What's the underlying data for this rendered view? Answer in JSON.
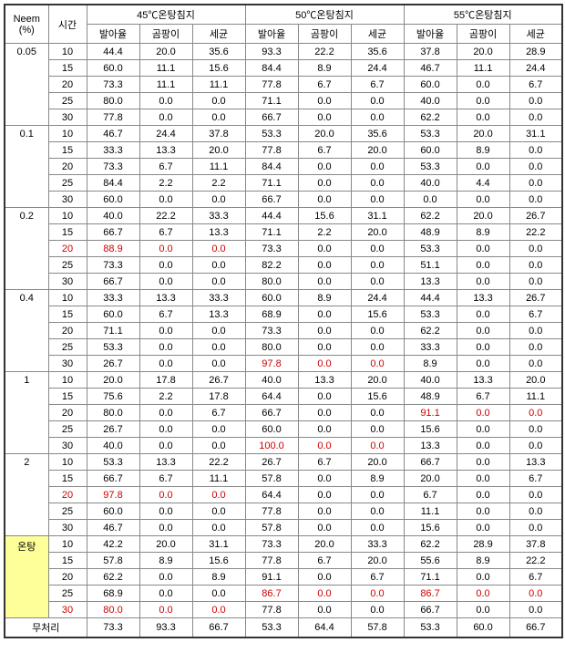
{
  "headers": {
    "neem": "Neem\n(%)",
    "time": "시간",
    "group45": "45℃온탕침지",
    "group50": "50℃온탕침지",
    "group55": "55℃온탕침지",
    "sub1": "발아율",
    "sub2": "곰팡이",
    "sub3": "세균"
  },
  "groups": [
    {
      "neem": "0.05",
      "rows": [
        {
          "time": "10",
          "v": [
            "44.4",
            "20.0",
            "35.6",
            "93.3",
            "22.2",
            "35.6",
            "37.8",
            "20.0",
            "28.9"
          ]
        },
        {
          "time": "15",
          "v": [
            "60.0",
            "11.1",
            "15.6",
            "84.4",
            "8.9",
            "24.4",
            "46.7",
            "11.1",
            "24.4"
          ]
        },
        {
          "time": "20",
          "v": [
            "73.3",
            "11.1",
            "11.1",
            "77.8",
            "6.7",
            "6.7",
            "60.0",
            "0.0",
            "6.7"
          ]
        },
        {
          "time": "25",
          "v": [
            "80.0",
            "0.0",
            "0.0",
            "71.1",
            "0.0",
            "0.0",
            "40.0",
            "0.0",
            "0.0"
          ]
        },
        {
          "time": "30",
          "v": [
            "77.8",
            "0.0",
            "0.0",
            "66.7",
            "0.0",
            "0.0",
            "62.2",
            "0.0",
            "0.0"
          ]
        }
      ]
    },
    {
      "neem": "0.1",
      "rows": [
        {
          "time": "10",
          "v": [
            "46.7",
            "24.4",
            "37.8",
            "53.3",
            "20.0",
            "35.6",
            "53.3",
            "20.0",
            "31.1"
          ]
        },
        {
          "time": "15",
          "v": [
            "33.3",
            "13.3",
            "20.0",
            "77.8",
            "6.7",
            "20.0",
            "60.0",
            "8.9",
            "0.0"
          ]
        },
        {
          "time": "20",
          "v": [
            "73.3",
            "6.7",
            "11.1",
            "84.4",
            "0.0",
            "0.0",
            "53.3",
            "0.0",
            "0.0"
          ]
        },
        {
          "time": "25",
          "v": [
            "84.4",
            "2.2",
            "2.2",
            "71.1",
            "0.0",
            "0.0",
            "40.0",
            "4.4",
            "0.0"
          ]
        },
        {
          "time": "30",
          "v": [
            "60.0",
            "0.0",
            "0.0",
            "66.7",
            "0.0",
            "0.0",
            "0.0",
            "0.0",
            "0.0"
          ]
        }
      ]
    },
    {
      "neem": "0.2",
      "rows": [
        {
          "time": "10",
          "v": [
            "40.0",
            "22.2",
            "33.3",
            "44.4",
            "15.6",
            "31.1",
            "62.2",
            "20.0",
            "26.7"
          ]
        },
        {
          "time": "15",
          "v": [
            "66.7",
            "6.7",
            "13.3",
            "71.1",
            "2.2",
            "20.0",
            "48.9",
            "8.9",
            "22.2"
          ]
        },
        {
          "time": "20",
          "red": [
            0,
            1,
            2,
            3
          ],
          "v": [
            "88.9",
            "0.0",
            "0.0",
            "73.3",
            "0.0",
            "0.0",
            "53.3",
            "0.0",
            "0.0"
          ]
        },
        {
          "time": "25",
          "v": [
            "73.3",
            "0.0",
            "0.0",
            "82.2",
            "0.0",
            "0.0",
            "51.1",
            "0.0",
            "0.0"
          ]
        },
        {
          "time": "30",
          "v": [
            "66.7",
            "0.0",
            "0.0",
            "80.0",
            "0.0",
            "0.0",
            "13.3",
            "0.0",
            "0.0"
          ]
        }
      ]
    },
    {
      "neem": "0.4",
      "rows": [
        {
          "time": "10",
          "v": [
            "33.3",
            "13.3",
            "33.3",
            "60.0",
            "8.9",
            "24.4",
            "44.4",
            "13.3",
            "26.7"
          ]
        },
        {
          "time": "15",
          "v": [
            "60.0",
            "6.7",
            "13.3",
            "68.9",
            "0.0",
            "15.6",
            "53.3",
            "0.0",
            "6.7"
          ]
        },
        {
          "time": "20",
          "v": [
            "71.1",
            "0.0",
            "0.0",
            "73.3",
            "0.0",
            "0.0",
            "62.2",
            "0.0",
            "0.0"
          ]
        },
        {
          "time": "25",
          "v": [
            "53.3",
            "0.0",
            "0.0",
            "80.0",
            "0.0",
            "0.0",
            "33.3",
            "0.0",
            "0.0"
          ]
        },
        {
          "time": "30",
          "red": [
            4,
            5,
            6
          ],
          "v": [
            "26.7",
            "0.0",
            "0.0",
            "97.8",
            "0.0",
            "0.0",
            "8.9",
            "0.0",
            "0.0"
          ]
        }
      ]
    },
    {
      "neem": "1",
      "rows": [
        {
          "time": "10",
          "v": [
            "20.0",
            "17.8",
            "26.7",
            "40.0",
            "13.3",
            "20.0",
            "40.0",
            "13.3",
            "20.0"
          ]
        },
        {
          "time": "15",
          "v": [
            "75.6",
            "2.2",
            "17.8",
            "64.4",
            "0.0",
            "15.6",
            "48.9",
            "6.7",
            "11.1"
          ]
        },
        {
          "time": "20",
          "red": [
            7,
            8,
            9
          ],
          "v": [
            "80.0",
            "0.0",
            "6.7",
            "66.7",
            "0.0",
            "0.0",
            "91.1",
            "0.0",
            "0.0"
          ]
        },
        {
          "time": "25",
          "v": [
            "26.7",
            "0.0",
            "0.0",
            "60.0",
            "0.0",
            "0.0",
            "15.6",
            "0.0",
            "0.0"
          ]
        },
        {
          "time": "30",
          "red": [
            4,
            5,
            6
          ],
          "v": [
            "40.0",
            "0.0",
            "0.0",
            "100.0",
            "0.0",
            "0.0",
            "13.3",
            "0.0",
            "0.0"
          ]
        }
      ]
    },
    {
      "neem": "2",
      "rows": [
        {
          "time": "10",
          "v": [
            "53.3",
            "13.3",
            "22.2",
            "26.7",
            "6.7",
            "20.0",
            "66.7",
            "0.0",
            "13.3"
          ]
        },
        {
          "time": "15",
          "v": [
            "66.7",
            "6.7",
            "11.1",
            "57.8",
            "0.0",
            "8.9",
            "20.0",
            "0.0",
            "6.7"
          ]
        },
        {
          "time": "20",
          "red": [
            0,
            1,
            2,
            3
          ],
          "v": [
            "97.8",
            "0.0",
            "0.0",
            "64.4",
            "0.0",
            "0.0",
            "6.7",
            "0.0",
            "0.0"
          ]
        },
        {
          "time": "25",
          "v": [
            "60.0",
            "0.0",
            "0.0",
            "77.8",
            "0.0",
            "0.0",
            "11.1",
            "0.0",
            "0.0"
          ]
        },
        {
          "time": "30",
          "v": [
            "46.7",
            "0.0",
            "0.0",
            "57.8",
            "0.0",
            "0.0",
            "15.6",
            "0.0",
            "0.0"
          ]
        }
      ]
    },
    {
      "neem": "온탕",
      "hiliteNeem": true,
      "rows": [
        {
          "time": "10",
          "v": [
            "42.2",
            "20.0",
            "31.1",
            "73.3",
            "20.0",
            "33.3",
            "62.2",
            "28.9",
            "37.8"
          ]
        },
        {
          "time": "15",
          "v": [
            "57.8",
            "8.9",
            "15.6",
            "77.8",
            "6.7",
            "20.0",
            "55.6",
            "8.9",
            "22.2"
          ]
        },
        {
          "time": "20",
          "v": [
            "62.2",
            "0.0",
            "8.9",
            "91.1",
            "0.0",
            "6.7",
            "71.1",
            "0.0",
            "6.7"
          ]
        },
        {
          "time": "25",
          "red": [
            4,
            5,
            6,
            7,
            8,
            9
          ],
          "v": [
            "68.9",
            "0.0",
            "0.0",
            "86.7",
            "0.0",
            "0.0",
            "86.7",
            "0.0",
            "0.0"
          ]
        },
        {
          "time": "30",
          "red": [
            0,
            1,
            2,
            3
          ],
          "v": [
            "80.0",
            "0.0",
            "0.0",
            "77.8",
            "0.0",
            "0.0",
            "66.7",
            "0.0",
            "0.0"
          ]
        }
      ]
    }
  ],
  "footer": {
    "label": "무처리",
    "v": [
      "73.3",
      "93.3",
      "66.7",
      "53.3",
      "64.4",
      "57.8",
      "53.3",
      "60.0",
      "66.7"
    ]
  },
  "colors": {
    "red": "#d00000",
    "highlight": "#ffff99",
    "border": "#888888"
  }
}
